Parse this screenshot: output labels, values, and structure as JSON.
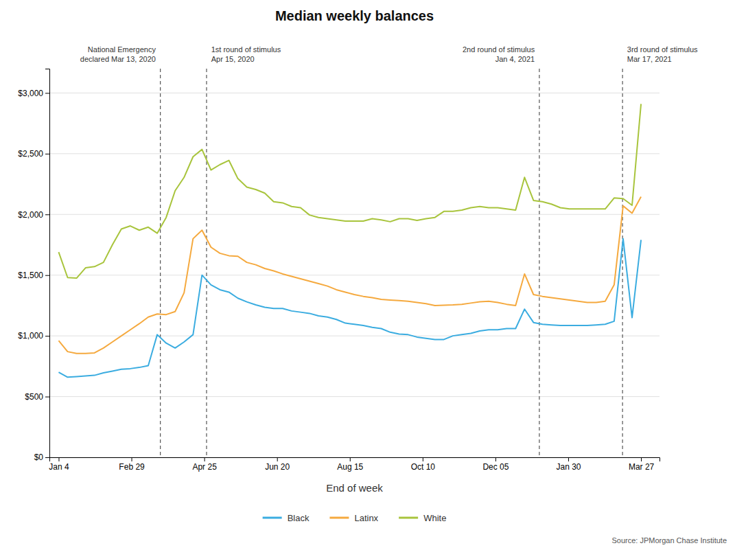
{
  "chart_data": {
    "type": "line",
    "title": "Median weekly balances",
    "xlabel": "End of week",
    "source": "Source: JPMorgan Chase Institute",
    "x": [
      0,
      0.969231,
      1.938462,
      2.907692,
      3.876923,
      4.846154,
      5.815385,
      6.784615,
      7.753846,
      8.723077,
      9.692308,
      10.661538,
      11.630769,
      12.6,
      13.569231,
      14.538462,
      15.507692,
      16.476923,
      17.446154,
      18.415385,
      19.384615,
      20.353846,
      21.323077,
      22.292308,
      23.261538,
      24.230769,
      25.2,
      26.169231,
      27.138462,
      28.107692,
      29.076923,
      30.046154,
      31.015385,
      31.984615,
      32.953846,
      33.923077,
      34.892308,
      35.861538,
      36.830769,
      37.8,
      38.769231,
      39.738462,
      40.707692,
      41.676923,
      42.646154,
      43.615385,
      44.584615,
      45.553846,
      46.523077,
      47.492308,
      48.461538,
      49.430769,
      50.4,
      51.369231,
      52.338462,
      53.307692,
      54.276923,
      55.246154,
      56.215385,
      57.184615,
      58.153846,
      59.123077,
      60.092308,
      61.061538,
      62.030769,
      63
    ],
    "series": [
      {
        "name": "Black",
        "color": "#3aace0",
        "values": [
          700,
          660,
          665,
          670,
          675,
          695,
          710,
          725,
          730,
          740,
          755,
          1010,
          940,
          900,
          950,
          1010,
          1500,
          1420,
          1380,
          1360,
          1310,
          1280,
          1255,
          1235,
          1225,
          1225,
          1205,
          1195,
          1185,
          1165,
          1155,
          1135,
          1105,
          1095,
          1085,
          1070,
          1060,
          1030,
          1015,
          1010,
          990,
          980,
          970,
          970,
          1000,
          1010,
          1020,
          1040,
          1050,
          1050,
          1060,
          1060,
          1220,
          1110,
          1095,
          1090,
          1085,
          1085,
          1085,
          1085,
          1090,
          1095,
          1120,
          1800,
          1150,
          1790
        ]
      },
      {
        "name": "Latinx",
        "color": "#f5a93e",
        "values": [
          960,
          870,
          855,
          855,
          860,
          900,
          950,
          1000,
          1050,
          1100,
          1155,
          1180,
          1175,
          1200,
          1355,
          1800,
          1870,
          1730,
          1680,
          1660,
          1655,
          1605,
          1585,
          1555,
          1535,
          1510,
          1490,
          1470,
          1450,
          1430,
          1410,
          1380,
          1360,
          1340,
          1325,
          1315,
          1300,
          1295,
          1290,
          1285,
          1275,
          1265,
          1250,
          1252,
          1255,
          1260,
          1270,
          1280,
          1285,
          1275,
          1260,
          1250,
          1510,
          1340,
          1325,
          1315,
          1305,
          1295,
          1285,
          1275,
          1275,
          1285,
          1420,
          2070,
          2010,
          2145
        ]
      },
      {
        "name": "White",
        "color": "#a8c43c",
        "values": [
          1690,
          1480,
          1475,
          1560,
          1570,
          1605,
          1750,
          1880,
          1905,
          1870,
          1895,
          1845,
          1975,
          2195,
          2305,
          2475,
          2535,
          2365,
          2410,
          2445,
          2295,
          2225,
          2205,
          2175,
          2105,
          2095,
          2065,
          2055,
          1995,
          1975,
          1965,
          1955,
          1945,
          1945,
          1945,
          1965,
          1955,
          1940,
          1965,
          1965,
          1950,
          1965,
          1975,
          2025,
          2025,
          2035,
          2055,
          2065,
          2055,
          2055,
          2045,
          2035,
          2305,
          2115,
          2105,
          2085,
          2055,
          2045,
          2045,
          2045,
          2045,
          2045,
          2135,
          2130,
          2075,
          2910
        ]
      }
    ],
    "xlim": [
      -1,
      65
    ],
    "xticks": [
      {
        "value": 0,
        "label": "Jan 4"
      },
      {
        "value": 7.875,
        "label": "Feb 29"
      },
      {
        "value": 15.75,
        "label": "Apr 25"
      },
      {
        "value": 23.625,
        "label": "Jun 20"
      },
      {
        "value": 31.5,
        "label": "Aug 15"
      },
      {
        "value": 39.375,
        "label": "Oct 10"
      },
      {
        "value": 47.25,
        "label": "Dec 05"
      },
      {
        "value": 55.125,
        "label": "Jan 30"
      },
      {
        "value": 63,
        "label": "Mar 27"
      }
    ],
    "ylim": [
      0,
      3200
    ],
    "yticks": [
      {
        "value": 0,
        "label": "$0"
      },
      {
        "value": 500,
        "label": "$500"
      },
      {
        "value": 1000,
        "label": "$1,000"
      },
      {
        "value": 1500,
        "label": "$1,500"
      },
      {
        "value": 2000,
        "label": "$2,000"
      },
      {
        "value": 2500,
        "label": "$2,500"
      },
      {
        "value": 3000,
        "label": "$3,000"
      }
    ],
    "vlines": [
      11,
      16,
      52,
      61
    ],
    "annotations": [
      {
        "text": [
          "National Emergency",
          "declared Mar 13, 2020"
        ],
        "x": 10.5
      },
      {
        "text": [
          "1st round of stimulus",
          "Apr 15, 2020"
        ],
        "x": 16.5
      },
      {
        "text": [
          "2nd round of stimulus",
          "Jan 4, 2021"
        ],
        "x": 51.5
      },
      {
        "text": [
          "3rd round of stimulus",
          "Mar 17, 2021"
        ],
        "x": 61.5
      }
    ],
    "grid": true,
    "legend": "bottom"
  }
}
